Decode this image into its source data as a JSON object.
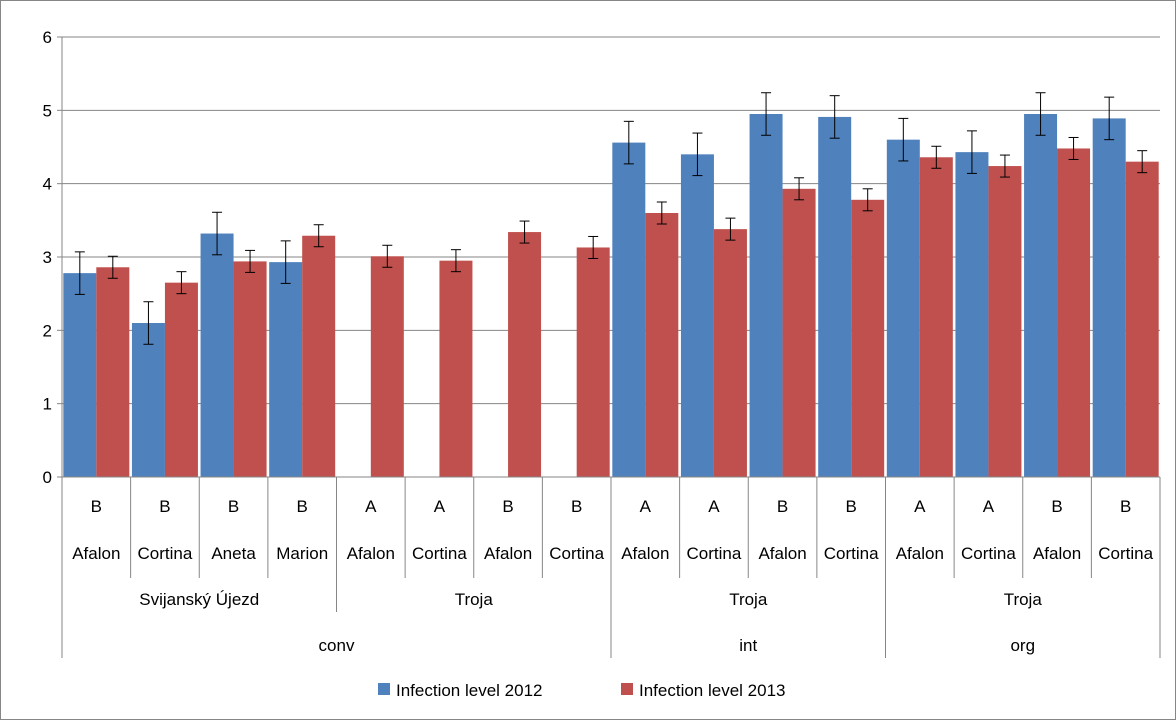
{
  "chart_data": {
    "type": "bar",
    "ylim": [
      0,
      6
    ],
    "yticks": [
      0,
      1,
      2,
      3,
      4,
      5,
      6
    ],
    "grid": true,
    "legend_position": "bottom",
    "categories": [
      {
        "level1": "B",
        "level2": "Afalon"
      },
      {
        "level1": "B",
        "level2": "Cortina"
      },
      {
        "level1": "B",
        "level2": "Aneta"
      },
      {
        "level1": "B",
        "level2": "Marion"
      },
      {
        "level1": "A",
        "level2": "Afalon"
      },
      {
        "level1": "A",
        "level2": "Cortina"
      },
      {
        "level1": "B",
        "level2": "Afalon"
      },
      {
        "level1": "B",
        "level2": "Cortina"
      },
      {
        "level1": "A",
        "level2": "Afalon"
      },
      {
        "level1": "A",
        "level2": "Cortina"
      },
      {
        "level1": "B",
        "level2": "Afalon"
      },
      {
        "level1": "B",
        "level2": "Cortina"
      },
      {
        "level1": "A",
        "level2": "Afalon"
      },
      {
        "level1": "A",
        "level2": "Cortina"
      },
      {
        "level1": "B",
        "level2": "Afalon"
      },
      {
        "level1": "B",
        "level2": "Cortina"
      }
    ],
    "locations": [
      {
        "label": "Svijanský Újezd",
        "span": 4
      },
      {
        "label": "Troja",
        "span": 4
      },
      {
        "label": "Troja",
        "span": 4
      },
      {
        "label": "Troja",
        "span": 4
      }
    ],
    "systems": [
      {
        "label": "conv",
        "span": 8
      },
      {
        "label": "int",
        "span": 4
      },
      {
        "label": "org",
        "span": 4
      }
    ],
    "series": [
      {
        "name": "Infection level 2012",
        "color": "#4f81bd",
        "values": [
          2.78,
          2.1,
          3.32,
          2.93,
          null,
          null,
          null,
          null,
          4.56,
          4.4,
          4.95,
          4.91,
          4.6,
          4.43,
          4.95,
          4.89
        ],
        "errors": [
          0.29,
          0.29,
          0.29,
          0.29,
          null,
          null,
          null,
          null,
          0.29,
          0.29,
          0.29,
          0.29,
          0.29,
          0.29,
          0.29,
          0.29
        ]
      },
      {
        "name": "Infection level 2013",
        "color": "#c0504d",
        "values": [
          2.86,
          2.65,
          2.94,
          3.29,
          3.01,
          2.95,
          3.34,
          3.13,
          3.6,
          3.38,
          3.93,
          3.78,
          4.36,
          4.24,
          4.48,
          4.3
        ],
        "errors": [
          0.15,
          0.15,
          0.15,
          0.15,
          0.15,
          0.15,
          0.15,
          0.15,
          0.15,
          0.15,
          0.15,
          0.15,
          0.15,
          0.15,
          0.15,
          0.15
        ]
      }
    ]
  }
}
